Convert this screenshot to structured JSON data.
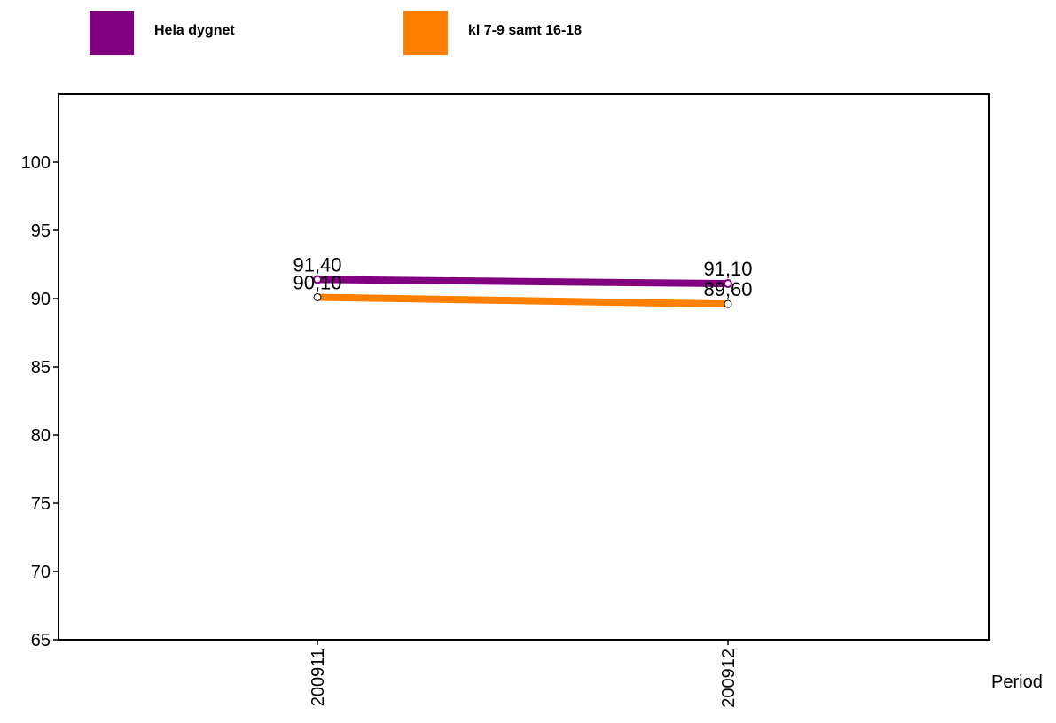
{
  "chart_data": {
    "type": "line",
    "categories": [
      "200911",
      "200912"
    ],
    "series": [
      {
        "name": "Hela dygnet",
        "values": [
          91.4,
          91.1
        ],
        "labels": [
          "91,40",
          "91,10"
        ],
        "color": "#800080"
      },
      {
        "name": "kl 7-9 samt 16-18",
        "values": [
          90.1,
          89.6
        ],
        "labels": [
          "90,10",
          "89,60"
        ],
        "color": "#FF8000"
      }
    ],
    "yticks": [
      65,
      70,
      75,
      80,
      85,
      90,
      95,
      100
    ],
    "ylim": [
      65,
      105
    ],
    "xlabel": "Period",
    "ylabel": "",
    "title": "",
    "grid": false,
    "legend_position": "top"
  }
}
